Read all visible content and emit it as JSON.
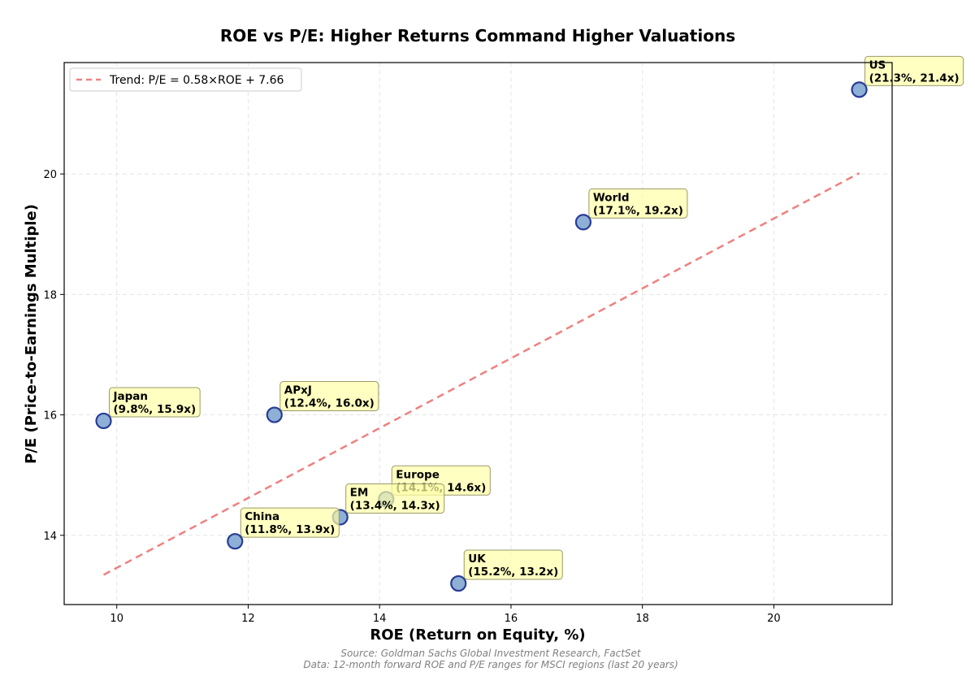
{
  "chart_data": {
    "type": "scatter",
    "title": "ROE vs P/E: Higher Returns Command Higher Valuations",
    "xlabel": "ROE (Return on Equity, %)",
    "ylabel": "P/E (Price-to-Earnings Multiple)",
    "xlim": [
      9.2,
      21.8
    ],
    "ylim": [
      12.85,
      21.85
    ],
    "xticks": [
      10,
      12,
      14,
      16,
      18,
      20
    ],
    "yticks": [
      14,
      16,
      18,
      20
    ],
    "grid": true,
    "legend_position": "top-left",
    "points": [
      {
        "label": "US",
        "roe": 21.3,
        "pe": 21.4,
        "annotation": "(21.3%, 21.4x)"
      },
      {
        "label": "World",
        "roe": 17.1,
        "pe": 19.2,
        "annotation": "(17.1%, 19.2x)"
      },
      {
        "label": "Japan",
        "roe": 9.8,
        "pe": 15.9,
        "annotation": "(9.8%, 15.9x)"
      },
      {
        "label": "APxJ",
        "roe": 12.4,
        "pe": 16.0,
        "annotation": "(12.4%, 16.0x)"
      },
      {
        "label": "Europe",
        "roe": 14.1,
        "pe": 14.6,
        "annotation": "(14.1%, 14.6x)"
      },
      {
        "label": "EM",
        "roe": 13.4,
        "pe": 14.3,
        "annotation": "(13.4%, 14.3x)"
      },
      {
        "label": "China",
        "roe": 11.8,
        "pe": 13.9,
        "annotation": "(11.8%, 13.9x)"
      },
      {
        "label": "UK",
        "roe": 15.2,
        "pe": 13.2,
        "annotation": "(15.2%, 13.2x)"
      }
    ],
    "trend": {
      "label": "Trend: P/E = 0.58×ROE + 7.66",
      "slope": 0.58,
      "intercept": 7.66,
      "x_range": [
        9.8,
        21.3
      ]
    },
    "source_line1": "Source: Goldman Sachs Global Investment Research, FactSet",
    "source_line2": "Data: 12-month forward ROE and P/E ranges for MSCI regions (last 20 years)"
  },
  "colors": {
    "point_fill": "#8fb0d6",
    "point_edge": "#283c96",
    "trend": "#f08080",
    "annotation_fill": "#ffffa6",
    "annotation_edge": "#9a9a6a",
    "grid": "#e4e4e4"
  }
}
